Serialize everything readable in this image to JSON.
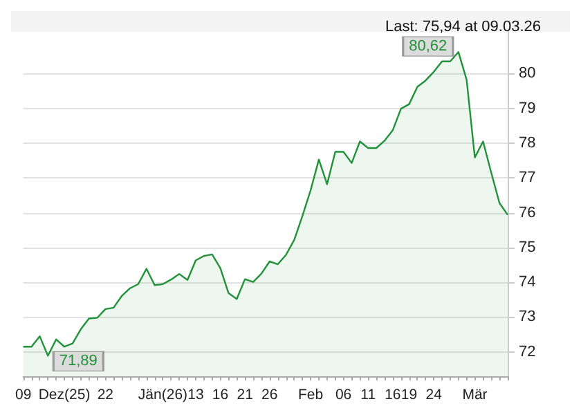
{
  "chart_data": {
    "type": "area",
    "title": "Last: 75,94 at 09.03.26",
    "categories": [
      "09",
      null,
      null,
      null,
      null,
      "Dez(25)",
      null,
      null,
      null,
      null,
      "22",
      null,
      null,
      null,
      null,
      null,
      null,
      "Jän(26)",
      null,
      null,
      null,
      "13",
      null,
      null,
      "16",
      null,
      null,
      "21",
      null,
      null,
      "26",
      null,
      null,
      null,
      null,
      "Feb",
      null,
      null,
      null,
      "06",
      null,
      null,
      "11",
      null,
      null,
      "16",
      null,
      "19",
      null,
      null,
      "24",
      null,
      null,
      null,
      null,
      "Mär",
      null,
      null,
      null,
      null
    ],
    "series": [
      {
        "color": "#22923a",
        "values": [
          72.15,
          72.15,
          72.45,
          71.89,
          72.36,
          72.15,
          72.24,
          72.65,
          72.96,
          72.98,
          73.23,
          73.27,
          73.61,
          73.83,
          73.95,
          74.39,
          73.92,
          73.95,
          74.08,
          74.24,
          74.07,
          74.63,
          74.76,
          74.8,
          74.41,
          73.69,
          73.52,
          74.09,
          74.01,
          74.25,
          74.6,
          74.52,
          74.79,
          75.22,
          75.91,
          76.65,
          77.53,
          76.82,
          77.75,
          77.75,
          77.43,
          78.05,
          77.86,
          77.86,
          78.07,
          78.37,
          78.99,
          79.12,
          79.62,
          79.8,
          80.05,
          80.35,
          80.35,
          80.62,
          79.82,
          77.59,
          78.05,
          77.15,
          76.28,
          75.94
        ]
      }
    ],
    "ylim": [
      71.3,
      81.2
    ],
    "yticks": [
      72,
      73,
      74,
      75,
      76,
      77,
      78,
      79,
      80
    ],
    "grid": "y",
    "annotations": [
      "80,62",
      "71,89"
    ]
  }
}
